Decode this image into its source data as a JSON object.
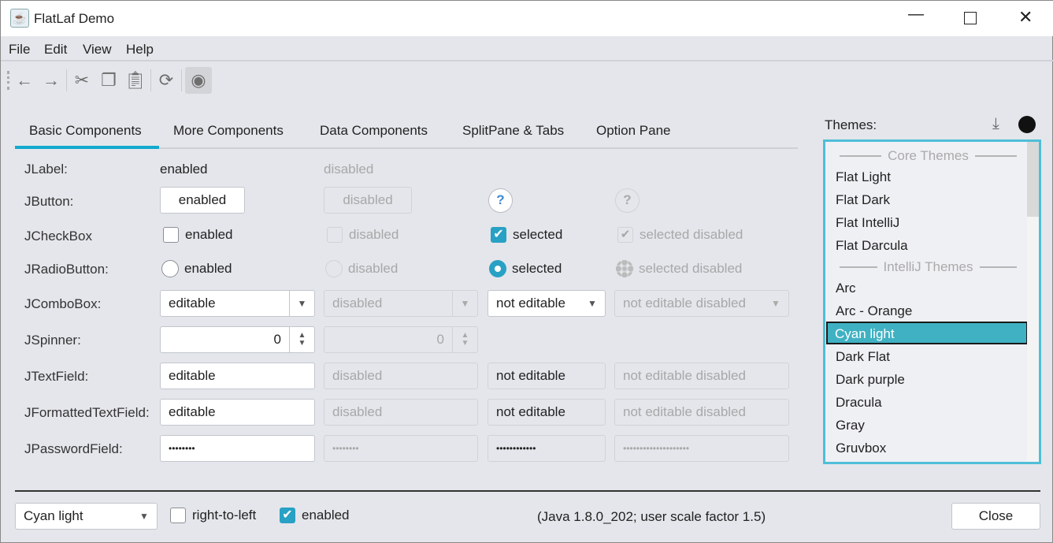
{
  "window": {
    "title": "FlatLaf Demo",
    "controls": [
      "minimize",
      "maximize",
      "close"
    ]
  },
  "menu": [
    "File",
    "Edit",
    "View",
    "Help"
  ],
  "toolbar": [
    "arrow-left-icon",
    "arrow-right-icon",
    "cut-icon",
    "copy-icon",
    "paste-icon",
    "refresh-icon",
    "eye-icon"
  ],
  "tabs": [
    "Basic Components",
    "More Components",
    "Data Components",
    "SplitPane & Tabs",
    "Option Pane"
  ],
  "selected_tab": "Basic Components",
  "rows": {
    "label": {
      "name": "JLabel:",
      "enabled": "enabled",
      "disabled": "disabled"
    },
    "button": {
      "name": "JButton:",
      "enabled": "enabled",
      "disabled": "disabled",
      "help": "?"
    },
    "checkbox": {
      "name": "JCheckBox",
      "enabled": "enabled",
      "disabled": "disabled",
      "selected": "selected",
      "selected_disabled": "selected disabled"
    },
    "radio": {
      "name": "JRadioButton:",
      "enabled": "enabled",
      "disabled": "disabled",
      "selected": "selected",
      "selected_disabled": "selected disabled"
    },
    "combo": {
      "name": "JComboBox:",
      "editable": "editable",
      "disabled": "disabled",
      "not_editable": "not editable",
      "not_editable_disabled": "not editable disabled"
    },
    "spinner": {
      "name": "JSpinner:",
      "value": "0",
      "disabled_value": "0"
    },
    "textfield": {
      "name": "JTextField:",
      "editable": "editable",
      "disabled": "disabled",
      "not_editable": "not editable",
      "not_editable_disabled": "not editable disabled"
    },
    "formatted": {
      "name": "JFormattedTextField:",
      "editable": "editable",
      "disabled": "disabled",
      "not_editable": "not editable",
      "not_editable_disabled": "not editable disabled"
    },
    "password": {
      "name": "JPasswordField:",
      "v1": "••••••••",
      "v2": "••••••••",
      "v3": "••••••••••••",
      "v4": "••••••••••••••••••••"
    }
  },
  "themes": {
    "label": "Themes:",
    "items": [
      {
        "header": "Core Themes"
      },
      {
        "name": "Flat Light"
      },
      {
        "name": "Flat Dark"
      },
      {
        "name": "Flat IntelliJ"
      },
      {
        "name": "Flat Darcula"
      },
      {
        "header": "IntelliJ Themes"
      },
      {
        "name": "Arc"
      },
      {
        "name": "Arc - Orange"
      },
      {
        "name": "Cyan light",
        "selected": true
      },
      {
        "name": "Dark Flat"
      },
      {
        "name": "Dark purple"
      },
      {
        "name": "Dracula"
      },
      {
        "name": "Gray"
      },
      {
        "name": "Gruvbox"
      }
    ]
  },
  "footer": {
    "theme_combo": "Cyan light",
    "rtl": "right-to-left",
    "rtl_checked": false,
    "enabled": "enabled",
    "enabled_checked": true,
    "info": "(Java 1.8.0_202;  user scale factor 1.5)",
    "close": "Close"
  },
  "colors": {
    "accent": "#28a1c4",
    "list_selection": "#3fb1c3",
    "background": "#e4e6eb"
  }
}
